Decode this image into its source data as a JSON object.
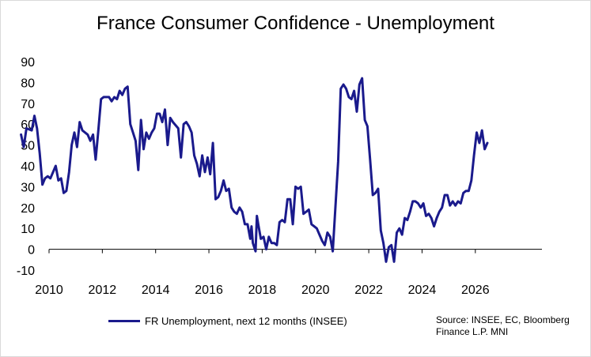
{
  "title": "France Consumer Confidence - Unemployment",
  "source_note": "Source: INSEE, EC, Bloomberg Finance L.P. MNI",
  "colors": {
    "series": "#1a1a8c",
    "axis": "#000000"
  },
  "chart_data": {
    "type": "line",
    "title": "France Consumer Confidence - Unemployment",
    "xlabel": "",
    "ylabel": "",
    "xlim": [
      2010,
      2027.5
    ],
    "ylim": [
      -10,
      90
    ],
    "x_ticks": [
      "2010",
      "2012",
      "2014",
      "2016",
      "2018",
      "2020",
      "2022",
      "2024",
      "2026"
    ],
    "y_ticks": [
      "-10",
      "0",
      "10",
      "20",
      "30",
      "40",
      "50",
      "60",
      "70",
      "80",
      "90"
    ],
    "grid": false,
    "legend_position": "bottom-left",
    "series": [
      {
        "name": "FR Unemployment, next 12 months (INSEE)",
        "color": "#1a1a8c",
        "points": [
          [
            2010.0,
            55
          ],
          [
            2010.1,
            49
          ],
          [
            2010.2,
            58
          ],
          [
            2010.4,
            57
          ],
          [
            2010.5,
            64
          ],
          [
            2010.6,
            58
          ],
          [
            2010.7,
            46
          ],
          [
            2010.8,
            31
          ],
          [
            2010.9,
            34
          ],
          [
            2011.0,
            35
          ],
          [
            2011.1,
            34
          ],
          [
            2011.3,
            40
          ],
          [
            2011.4,
            33
          ],
          [
            2011.5,
            34
          ],
          [
            2011.6,
            27
          ],
          [
            2011.7,
            28
          ],
          [
            2011.8,
            37
          ],
          [
            2011.9,
            50
          ],
          [
            2012.0,
            56
          ],
          [
            2012.1,
            49
          ],
          [
            2012.2,
            61
          ],
          [
            2012.3,
            57
          ],
          [
            2012.5,
            55
          ],
          [
            2012.6,
            52
          ],
          [
            2012.7,
            55
          ],
          [
            2012.8,
            43
          ],
          [
            2012.9,
            57
          ],
          [
            2013.0,
            72
          ],
          [
            2013.1,
            73
          ],
          [
            2013.3,
            73
          ],
          [
            2013.4,
            71
          ],
          [
            2013.5,
            73
          ],
          [
            2013.6,
            72
          ],
          [
            2013.7,
            76
          ],
          [
            2013.8,
            74
          ],
          [
            2013.9,
            77
          ],
          [
            2014.0,
            78
          ],
          [
            2014.1,
            60
          ],
          [
            2014.2,
            56
          ],
          [
            2014.3,
            52
          ],
          [
            2014.4,
            38
          ],
          [
            2014.5,
            62
          ],
          [
            2014.6,
            48
          ],
          [
            2014.7,
            56
          ],
          [
            2014.8,
            53
          ],
          [
            2014.9,
            56
          ],
          [
            2015.0,
            58
          ],
          [
            2015.1,
            65
          ],
          [
            2015.2,
            65
          ],
          [
            2015.3,
            61
          ],
          [
            2015.4,
            67
          ],
          [
            2015.5,
            50
          ],
          [
            2015.6,
            63
          ],
          [
            2015.7,
            61
          ],
          [
            2015.9,
            58
          ],
          [
            2016.0,
            44
          ],
          [
            2016.1,
            60
          ],
          [
            2016.2,
            61
          ],
          [
            2016.3,
            59
          ],
          [
            2016.4,
            56
          ],
          [
            2016.5,
            45
          ],
          [
            2016.6,
            41
          ],
          [
            2016.7,
            35
          ],
          [
            2016.8,
            45
          ],
          [
            2016.9,
            37
          ],
          [
            2017.0,
            44
          ],
          [
            2017.1,
            36
          ],
          [
            2017.2,
            51
          ],
          [
            2017.3,
            24
          ],
          [
            2017.4,
            25
          ],
          [
            2017.5,
            28
          ],
          [
            2017.6,
            33
          ],
          [
            2017.7,
            28
          ],
          [
            2017.8,
            29
          ],
          [
            2017.9,
            20
          ],
          [
            2018.0,
            18
          ],
          [
            2018.1,
            17
          ],
          [
            2018.2,
            20
          ],
          [
            2018.3,
            18
          ],
          [
            2018.4,
            12
          ],
          [
            2018.5,
            12
          ],
          [
            2018.6,
            5
          ],
          [
            2018.65,
            11
          ],
          [
            2018.7,
            3
          ],
          [
            2018.8,
            -1
          ],
          [
            2018.85,
            16
          ],
          [
            2018.9,
            12
          ],
          [
            2019.0,
            5
          ],
          [
            2019.1,
            6
          ],
          [
            2019.2,
            0
          ],
          [
            2019.3,
            6
          ],
          [
            2019.4,
            3
          ],
          [
            2019.5,
            3
          ],
          [
            2019.6,
            2
          ],
          [
            2019.7,
            13
          ],
          [
            2019.8,
            14
          ],
          [
            2019.9,
            13
          ],
          [
            2020.0,
            24
          ],
          [
            2020.1,
            24
          ],
          [
            2020.2,
            12
          ],
          [
            2020.3,
            30
          ],
          [
            2020.4,
            29
          ],
          [
            2020.5,
            30
          ],
          [
            2020.6,
            17
          ],
          [
            2020.7,
            18
          ],
          [
            2020.8,
            19
          ],
          [
            2020.9,
            12
          ],
          [
            2021.0,
            11
          ],
          [
            2021.1,
            10
          ],
          [
            2021.2,
            7
          ],
          [
            2021.3,
            4
          ],
          [
            2021.4,
            2
          ],
          [
            2021.5,
            8
          ],
          [
            2021.6,
            6
          ],
          [
            2021.7,
            -1
          ],
          [
            2021.9,
            42
          ],
          [
            2022.0,
            77
          ],
          [
            2022.1,
            79
          ],
          [
            2022.2,
            77
          ],
          [
            2022.3,
            73
          ],
          [
            2022.4,
            72
          ],
          [
            2022.5,
            76
          ],
          [
            2022.6,
            66
          ],
          [
            2022.7,
            79
          ],
          [
            2022.8,
            82
          ],
          [
            2022.9,
            62
          ],
          [
            2023.0,
            59
          ],
          [
            2023.1,
            43
          ],
          [
            2023.2,
            26
          ],
          [
            2023.3,
            27
          ],
          [
            2023.4,
            29
          ],
          [
            2023.5,
            9
          ],
          [
            2023.6,
            3
          ],
          [
            2023.7,
            -6
          ],
          [
            2023.8,
            1
          ],
          [
            2023.9,
            2
          ],
          [
            2024.0,
            -6
          ],
          [
            2024.1,
            8
          ],
          [
            2024.2,
            10
          ],
          [
            2024.3,
            7
          ],
          [
            2024.4,
            15
          ],
          [
            2024.5,
            14
          ],
          [
            2024.6,
            18
          ],
          [
            2024.7,
            23
          ],
          [
            2024.8,
            23
          ],
          [
            2024.9,
            22
          ],
          [
            2025.0,
            20
          ],
          [
            2025.1,
            22
          ],
          [
            2025.2,
            16
          ],
          [
            2025.3,
            17
          ],
          [
            2025.4,
            15
          ],
          [
            2025.5,
            11
          ],
          [
            2025.6,
            15
          ],
          [
            2025.7,
            18
          ],
          [
            2025.8,
            20
          ],
          [
            2025.9,
            26
          ],
          [
            2026.0,
            26
          ],
          [
            2026.1,
            21
          ],
          [
            2026.2,
            23
          ],
          [
            2026.3,
            21
          ],
          [
            2026.4,
            23
          ],
          [
            2026.5,
            22
          ],
          [
            2026.6,
            27
          ],
          [
            2026.7,
            28
          ],
          [
            2026.8,
            28
          ],
          [
            2026.9,
            33
          ],
          [
            2027.0,
            45
          ],
          [
            2027.1,
            56
          ],
          [
            2027.2,
            51
          ],
          [
            2027.3,
            57
          ],
          [
            2027.4,
            48
          ],
          [
            2027.5,
            51
          ]
        ]
      }
    ]
  }
}
